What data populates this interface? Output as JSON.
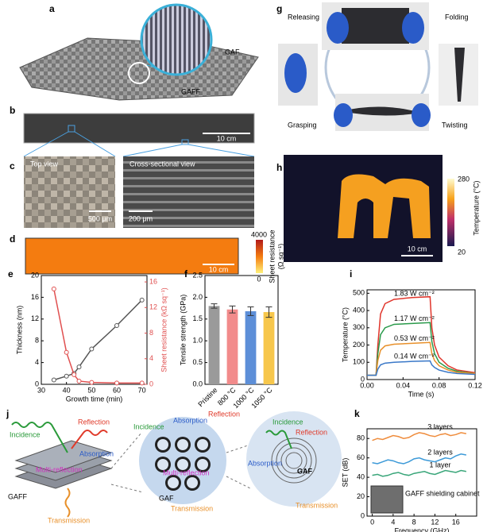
{
  "panel_labels": [
    "a",
    "b",
    "c",
    "d",
    "e",
    "f",
    "g",
    "h",
    "i",
    "j",
    "k"
  ],
  "a": {
    "labels": [
      "GAF",
      "GAFF"
    ]
  },
  "b": {
    "scale": "10 cm"
  },
  "c": {
    "left": "Top view",
    "left_scale": "500 μm",
    "right": "Cross-sectional view",
    "right_scale": "200 μm"
  },
  "d": {
    "scale": "10 cm",
    "colorbar_max": 4000,
    "colorbar_min": 0,
    "colorbar_label": [
      "Sheet resistance",
      "(Ω sq⁻¹)"
    ]
  },
  "g": {
    "labels": [
      "Releasing",
      "Folding",
      "Grasping",
      "Twisting"
    ]
  },
  "h": {
    "scale": "10 cm",
    "colorbar_max": 280,
    "colorbar_min": 20,
    "colorbar_label": "Temperature (°C)"
  },
  "j": {
    "left": [
      "Incidence",
      "Reflection",
      "Absorption",
      "Multi-reflection",
      "GAFF",
      "Transmission"
    ],
    "middle": [
      "Incidence",
      "Absorption",
      "Reflection",
      "Multi-reflection",
      "GAF",
      "Transmission"
    ],
    "right": [
      "Incidence",
      "Reflection",
      "Absorption",
      "GAF",
      "Transmission"
    ]
  },
  "chart_data": [
    {
      "type": "line",
      "x": [
        35,
        40,
        43,
        45,
        50,
        60,
        70
      ],
      "xlabel": "Growth time (min)",
      "ylabel": "Thickness (nm)",
      "y2label": "Sheet resistance (kΩ sq⁻¹)",
      "xlim": [
        30,
        72
      ],
      "xticks": [
        30,
        40,
        50,
        60,
        70
      ],
      "ylim": [
        0,
        20
      ],
      "yticks": [
        0,
        4,
        8,
        12,
        16,
        20
      ],
      "y2lim": [
        0,
        17
      ],
      "y2ticks": [
        0,
        4,
        8,
        12,
        16
      ],
      "markers": true,
      "series": [
        {
          "color": "#555555",
          "values": [
            0.8,
            1.5,
            2,
            3.2,
            6.5,
            10.8,
            15.5
          ]
        },
        {
          "color": "#e05050",
          "axis": "y2",
          "values": [
            14.9,
            5,
            1.5,
            0.5,
            0.3,
            0.2,
            0.2
          ]
        }
      ]
    },
    {
      "type": "bar",
      "categories": [
        "Pristine",
        "800 °C",
        "1000 °C",
        "1050 °C"
      ],
      "values": [
        1.8,
        1.72,
        1.68,
        1.66
      ],
      "errors": [
        0.05,
        0.08,
        0.1,
        0.12
      ],
      "colors": [
        "#9a9a9a",
        "#f28b8b",
        "#5d8fd8",
        "#f7c74c"
      ],
      "ylabel": "Tensile strength (GPa)",
      "ylim": [
        0,
        2.5
      ],
      "yticks": [
        {
          "value": 0,
          "label": "0.0"
        },
        0.5,
        {
          "value": 1,
          "label": "1.0"
        },
        1.5,
        {
          "value": 2,
          "label": "2.0"
        },
        2.5
      ]
    },
    {
      "type": "line",
      "x": [
        0,
        0.01,
        0.012,
        0.015,
        0.02,
        0.03,
        0.05,
        0.07,
        0.072,
        0.075,
        0.08,
        0.09,
        0.1,
        0.12
      ],
      "xlabel": "Time (s)",
      "ylabel": "Temperature (°C)",
      "xlim": [
        0,
        0.12
      ],
      "xticks": [
        {
          "value": 0,
          "label": "0.00"
        },
        {
          "value": 0.04,
          "label": "0.04"
        },
        {
          "value": 0.08,
          "label": "0.08"
        },
        {
          "value": 0.12,
          "label": "0.12"
        }
      ],
      "ylim": [
        0,
        520
      ],
      "yticks": [
        0,
        100,
        200,
        300,
        400,
        500
      ],
      "series": [
        {
          "name": "1.83 W cm⁻²",
          "color": "#e0352b",
          "values": [
            25,
            25,
            200,
            380,
            440,
            465,
            475,
            480,
            300,
            200,
            130,
            80,
            55,
            40
          ]
        },
        {
          "name": "1.17 W cm⁻²",
          "color": "#2a9a4a",
          "values": [
            25,
            25,
            150,
            260,
            300,
            320,
            325,
            330,
            220,
            150,
            100,
            65,
            48,
            35
          ]
        },
        {
          "name": "0.53 W cm⁻²",
          "color": "#e8902a",
          "values": [
            25,
            25,
            110,
            170,
            195,
            205,
            210,
            215,
            150,
            110,
            80,
            55,
            42,
            35
          ]
        },
        {
          "name": "0.14 W cm⁻²",
          "color": "#3a78c8",
          "values": [
            25,
            25,
            60,
            85,
            95,
            100,
            105,
            108,
            85,
            70,
            55,
            42,
            35,
            30
          ]
        }
      ]
    },
    {
      "type": "line",
      "x": [
        0,
        1,
        2,
        3,
        4,
        5,
        6,
        7,
        8,
        9,
        10,
        11,
        12,
        13,
        14,
        15,
        16,
        17,
        18
      ],
      "xlabel": "Frequency (GHz)",
      "ylabel": "SET (dB)",
      "xlim": [
        -1,
        20
      ],
      "xticks": [
        0,
        4,
        8,
        12,
        16
      ],
      "ylim": [
        0,
        90
      ],
      "yticks": [
        0,
        20,
        40,
        60,
        80
      ],
      "annotation": "GAFF shielding cabinet",
      "series": [
        {
          "name": "3 layers",
          "color": "#ef8c3c",
          "values": [
            78,
            80,
            79,
            81,
            83,
            82,
            80,
            81,
            84,
            86,
            85,
            83,
            82,
            84,
            85,
            83,
            84,
            86,
            85
          ]
        },
        {
          "name": "2 layers",
          "color": "#3d9ad8",
          "values": [
            55,
            54,
            56,
            58,
            57,
            55,
            54,
            56,
            59,
            60,
            58,
            57,
            56,
            58,
            60,
            59,
            62,
            64,
            63
          ]
        },
        {
          "name": "1 layer",
          "color": "#3aa67a",
          "values": [
            42,
            43,
            41,
            42,
            44,
            45,
            43,
            42,
            44,
            45,
            46,
            44,
            43,
            45,
            47,
            46,
            45,
            47,
            46
          ]
        }
      ]
    }
  ]
}
